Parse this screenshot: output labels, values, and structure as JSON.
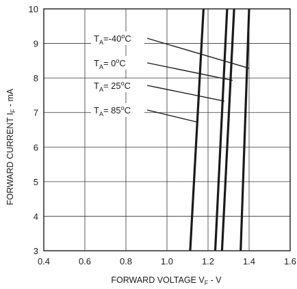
{
  "chart_data": {
    "type": "line",
    "title": "",
    "xlabel": {
      "main": "FORWARD VOLTAGE V",
      "sub": "F",
      "unit": " - V"
    },
    "ylabel": {
      "main": "FORWARD CURRENT I",
      "sub": "F",
      "unit": " - mA"
    },
    "xlim": [
      0.4,
      1.6
    ],
    "ylim": [
      3,
      10
    ],
    "xticks": [
      0.4,
      0.6,
      0.8,
      1.0,
      1.2,
      1.4,
      1.6
    ],
    "xtick_labels": [
      "0.4",
      "0.6",
      "0.8",
      "1.0",
      "1.2",
      "1.4",
      "1.6"
    ],
    "yticks": [
      3,
      4,
      5,
      6,
      7,
      8,
      9,
      10
    ],
    "ytick_labels": [
      "3",
      "4",
      "5",
      "6",
      "7",
      "8",
      "9",
      "10"
    ],
    "grid": true,
    "legend": "none",
    "line_color": "#1a1a1a",
    "series": [
      {
        "name": {
          "pre": "T",
          "sub": "A",
          "post": "=-40",
          "deg": "o",
          "unit": "C"
        },
        "points": [
          [
            1.359,
            3.0
          ],
          [
            1.4,
            10.0
          ]
        ],
        "label_arrow_to": [
          1.4,
          8.28
        ]
      },
      {
        "name": {
          "pre": "T",
          "sub": "A",
          "post": "=  0",
          "deg": "o",
          "unit": "C"
        },
        "points": [
          [
            1.268,
            3.0
          ],
          [
            1.327,
            10.0
          ]
        ],
        "label_arrow_to": [
          1.32,
          7.93
        ]
      },
      {
        "name": {
          "pre": "T",
          "sub": "A",
          "post": "= 25",
          "deg": "o",
          "unit": "C"
        },
        "points": [
          [
            1.235,
            3.0
          ],
          [
            1.293,
            10.0
          ]
        ],
        "label_arrow_to": [
          1.28,
          7.33
        ]
      },
      {
        "name": {
          "pre": "T",
          "sub": "A",
          "post": "= 85",
          "deg": "o",
          "unit": "C"
        },
        "points": [
          [
            1.113,
            3.0
          ],
          [
            1.178,
            10.0
          ]
        ],
        "label_arrow_to": [
          1.15,
          6.72
        ]
      }
    ]
  }
}
